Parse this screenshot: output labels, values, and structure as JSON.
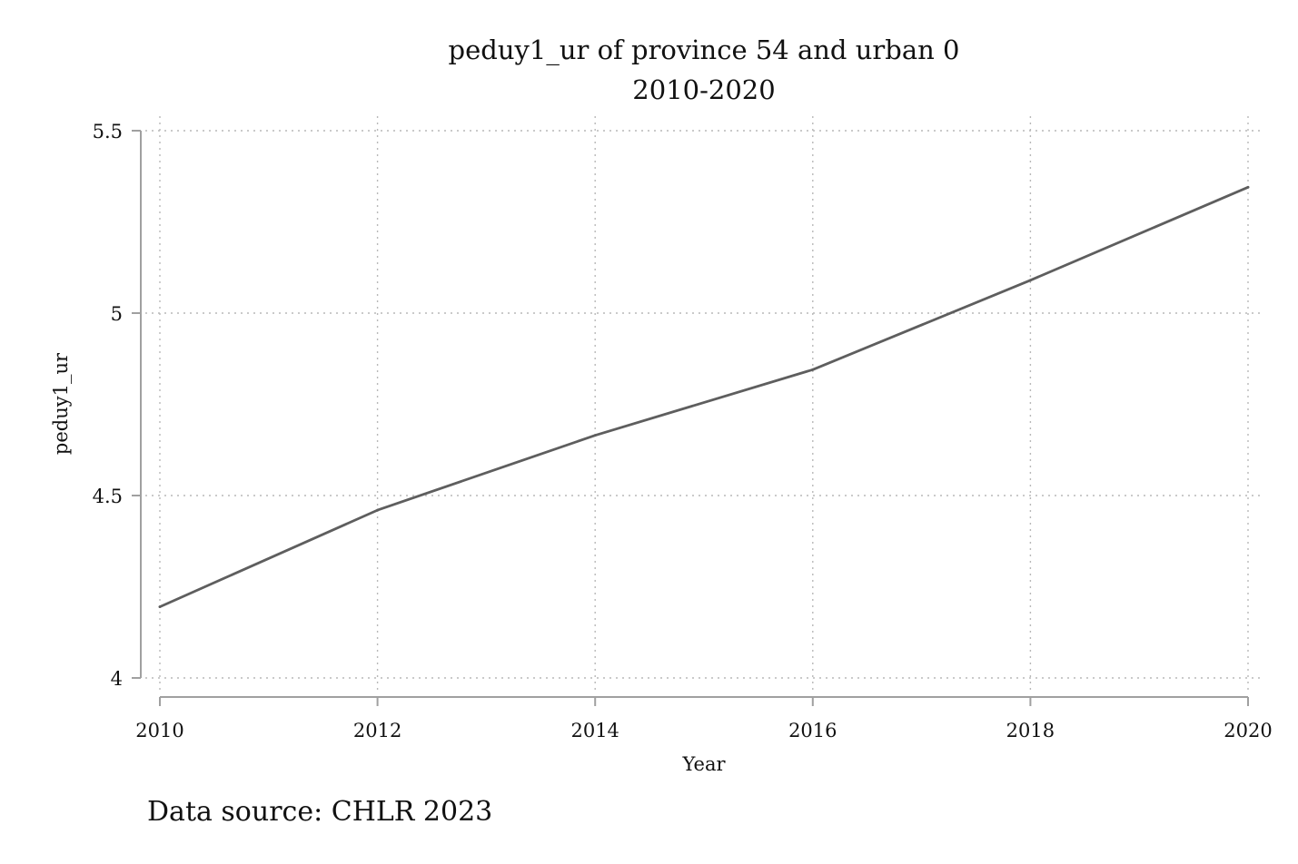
{
  "chart_data": {
    "type": "line",
    "title": "peduy1_ur of province 54 and urban 0",
    "subtitle": "2010-2020",
    "xlabel": "Year",
    "ylabel": "peduy1_ur",
    "note": "Data source: CHLR 2023",
    "x": [
      2010,
      2012,
      2014,
      2016,
      2018,
      2020
    ],
    "series": [
      {
        "name": "peduy1_ur",
        "values": [
          4.195,
          4.46,
          4.665,
          4.845,
          5.09,
          5.345
        ],
        "color": "#5e5e5e"
      }
    ],
    "xticks": [
      2010,
      2012,
      2014,
      2016,
      2018,
      2020
    ],
    "xtick_labels": [
      "2010",
      "2012",
      "2014",
      "2016",
      "2018",
      "2020"
    ],
    "yticks": [
      4,
      4.5,
      5,
      5.5
    ],
    "ytick_labels": [
      "4",
      "4.5",
      "5",
      "5.5"
    ],
    "xlim": [
      2010,
      2020
    ],
    "ylim": [
      4,
      5.5
    ],
    "grid": true,
    "legend": "none"
  }
}
